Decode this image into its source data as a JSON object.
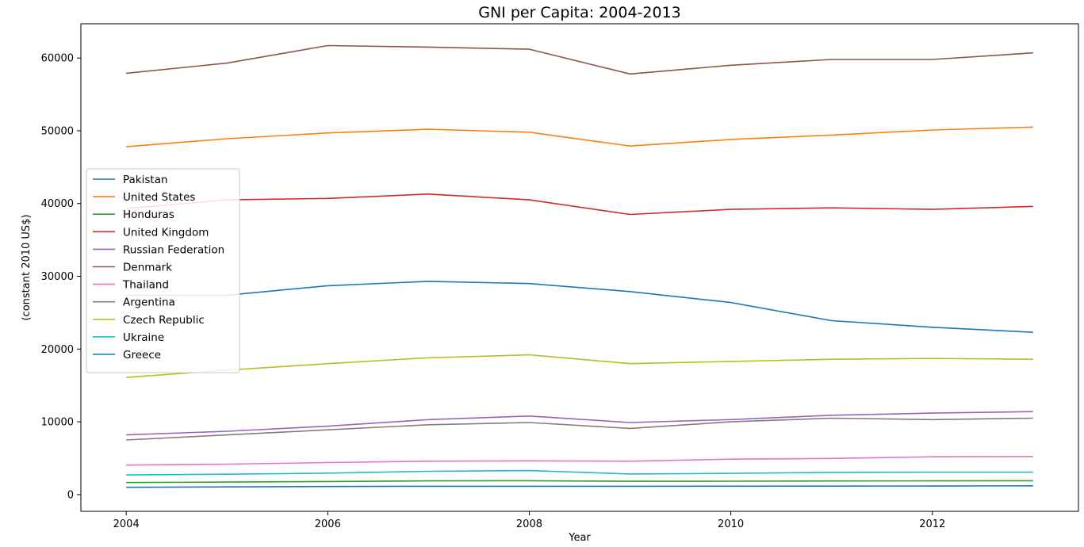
{
  "chart_data": {
    "type": "line",
    "title": "GNI per Capita: 2004-2013",
    "xlabel": "Year",
    "ylabel": "(constant 2010 US$)",
    "xlim": [
      2003.55,
      2013.45
    ],
    "ylim": [
      -2300,
      64700
    ],
    "xticks": [
      2004,
      2006,
      2008,
      2010,
      2012
    ],
    "yticks": [
      0,
      10000,
      20000,
      30000,
      40000,
      50000,
      60000
    ],
    "grid": false,
    "legend_position": "center-left",
    "x": [
      2004,
      2005,
      2006,
      2007,
      2008,
      2009,
      2010,
      2011,
      2012,
      2013
    ],
    "series": [
      {
        "name": "Pakistan",
        "color": "#1f77b4",
        "values": [
          1000,
          1060,
          1110,
          1140,
          1140,
          1140,
          1150,
          1160,
          1180,
          1210
        ]
      },
      {
        "name": "United States",
        "color": "#ff7f0e",
        "values": [
          47800,
          48900,
          49700,
          50200,
          49800,
          47900,
          48800,
          49400,
          50100,
          50500
        ]
      },
      {
        "name": "Honduras",
        "color": "#2ca02c",
        "values": [
          1650,
          1720,
          1800,
          1880,
          1900,
          1830,
          1840,
          1870,
          1880,
          1900
        ]
      },
      {
        "name": "United Kingdom",
        "color": "#d62728",
        "values": [
          39300,
          40500,
          40700,
          41300,
          40500,
          38500,
          39200,
          39400,
          39200,
          39600
        ]
      },
      {
        "name": "Russian Federation",
        "color": "#9467bd",
        "values": [
          8200,
          8700,
          9400,
          10300,
          10800,
          9900,
          10300,
          10900,
          11200,
          11400
        ]
      },
      {
        "name": "Denmark",
        "color": "#8c564b",
        "values": [
          57900,
          59300,
          61700,
          61500,
          61200,
          57800,
          59000,
          59800,
          59800,
          60700
        ]
      },
      {
        "name": "Thailand",
        "color": "#e377c2",
        "values": [
          4050,
          4180,
          4400,
          4580,
          4640,
          4580,
          4870,
          4970,
          5200,
          5230
        ]
      },
      {
        "name": "Argentina",
        "color": "#7f7f7f",
        "values": [
          7500,
          8200,
          8900,
          9600,
          9900,
          9100,
          10000,
          10500,
          10300,
          10500
        ]
      },
      {
        "name": "Czech Republic",
        "color": "#bcbd22",
        "values": [
          16100,
          17100,
          18000,
          18800,
          19200,
          18000,
          18300,
          18600,
          18700,
          18600
        ]
      },
      {
        "name": "Ukraine",
        "color": "#17becf",
        "values": [
          2700,
          2800,
          2950,
          3200,
          3300,
          2830,
          2920,
          3050,
          3080,
          3080
        ]
      },
      {
        "name": "Greece",
        "color": "#1f77b4",
        "values": [
          27400,
          27400,
          28700,
          29300,
          29000,
          27900,
          26400,
          23900,
          23000,
          22300
        ]
      }
    ]
  }
}
